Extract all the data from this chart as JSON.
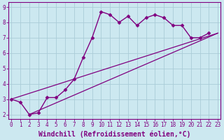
{
  "series": [
    {
      "x": [
        0,
        1,
        2,
        3,
        4,
        5,
        6,
        7,
        8,
        9,
        10,
        11,
        12,
        13,
        14,
        15,
        16,
        17,
        18,
        19,
        20,
        21,
        22
      ],
      "y": [
        3.0,
        2.8,
        2.0,
        2.1,
        3.1,
        3.1,
        3.6,
        4.3,
        5.7,
        7.0,
        8.7,
        8.5,
        8.0,
        8.4,
        7.8,
        8.3,
        8.5,
        8.3,
        7.8,
        7.8,
        7.0,
        7.0,
        7.3
      ],
      "color": "#800080",
      "marker": "D",
      "markersize": 2.5,
      "linewidth": 1.0
    },
    {
      "x": [
        0,
        23
      ],
      "y": [
        3.0,
        7.3
      ],
      "color": "#800080",
      "marker": null,
      "linewidth": 0.9
    },
    {
      "x": [
        2,
        23
      ],
      "y": [
        2.0,
        7.3
      ],
      "color": "#800080",
      "marker": null,
      "linewidth": 0.9
    }
  ],
  "xlim": [
    -0.3,
    23.3
  ],
  "ylim": [
    1.7,
    9.3
  ],
  "xticks": [
    0,
    1,
    2,
    3,
    4,
    5,
    6,
    7,
    8,
    9,
    10,
    11,
    12,
    13,
    14,
    15,
    16,
    17,
    18,
    19,
    20,
    21,
    22,
    23
  ],
  "yticks": [
    2,
    3,
    4,
    5,
    6,
    7,
    8,
    9
  ],
  "xlabel": "Windchill (Refroidissement éolien,°C)",
  "bg_color": "#cce8f0",
  "grid_color": "#aaccd8",
  "line_color": "#800080",
  "tick_color": "#800080",
  "label_color": "#800080",
  "tick_fontsize": 5.5,
  "xlabel_fontsize": 7.0
}
